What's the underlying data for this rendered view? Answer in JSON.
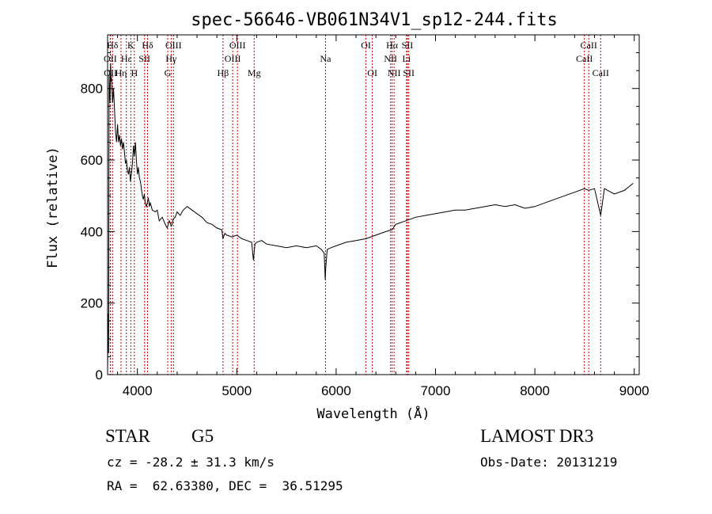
{
  "chart_data": {
    "type": "line",
    "title": "spec-56646-VB061N34V1_sp12-244.fits",
    "xlabel": "Wavelength (Å)",
    "ylabel": "Flux (relative)",
    "xlim": [
      3700,
      9050
    ],
    "ylim": [
      0,
      950
    ],
    "x_ticks": [
      4000,
      5000,
      6000,
      7000,
      8000,
      9000
    ],
    "y_ticks": [
      0,
      200,
      400,
      600,
      800
    ],
    "grid": false,
    "series": [
      {
        "x": [
          3700,
          3705,
          3710,
          3715,
          3720,
          3725,
          3730,
          3735,
          3740,
          3750,
          3760,
          3770,
          3780,
          3790,
          3800,
          3810,
          3820,
          3830,
          3840,
          3850,
          3860,
          3870,
          3880,
          3890,
          3900,
          3910,
          3920,
          3930,
          3940,
          3950,
          3960,
          3970,
          3980,
          3990,
          4000,
          4010,
          4020,
          4030,
          4040,
          4050,
          4060,
          4070,
          4080,
          4090,
          4100,
          4110,
          4120,
          4130,
          4150,
          4180,
          4200,
          4220,
          4250,
          4280,
          4300,
          4320,
          4330,
          4340,
          4350,
          4360,
          4380,
          4400,
          4430,
          4460,
          4500,
          4550,
          4600,
          4650,
          4700,
          4750,
          4800,
          4850,
          4861,
          4880,
          4900,
          4950,
          5000,
          5050,
          5100,
          5150,
          5167,
          5183,
          5200,
          5250,
          5300,
          5400,
          5500,
          5600,
          5700,
          5800,
          5850,
          5880,
          5890,
          5896,
          5910,
          5950,
          6000,
          6100,
          6200,
          6300,
          6400,
          6500,
          6563,
          6600,
          6700,
          6800,
          6900,
          7000,
          7100,
          7200,
          7300,
          7400,
          7500,
          7600,
          7700,
          7800,
          7900,
          8000,
          8100,
          8200,
          8300,
          8400,
          8498,
          8542,
          8600,
          8662,
          8700,
          8800,
          8900,
          8990
        ],
        "y": [
          5,
          170,
          60,
          840,
          800,
          760,
          870,
          820,
          830,
          760,
          800,
          740,
          680,
          650,
          700,
          650,
          670,
          640,
          660,
          630,
          650,
          620,
          590,
          600,
          570,
          560,
          580,
          540,
          560,
          590,
          640,
          610,
          650,
          600,
          560,
          580,
          550,
          540,
          520,
          500,
          490,
          505,
          480,
          470,
          480,
          495,
          470,
          480,
          460,
          455,
          460,
          430,
          440,
          420,
          410,
          430,
          425,
          415,
          420,
          435,
          440,
          455,
          445,
          460,
          470,
          460,
          450,
          440,
          425,
          420,
          410,
          405,
          380,
          395,
          390,
          385,
          390,
          380,
          375,
          370,
          320,
          365,
          370,
          375,
          365,
          360,
          355,
          360,
          355,
          360,
          350,
          340,
          265,
          300,
          350,
          355,
          360,
          370,
          375,
          380,
          390,
          400,
          405,
          420,
          430,
          440,
          445,
          450,
          455,
          460,
          460,
          465,
          470,
          475,
          470,
          475,
          465,
          470,
          480,
          490,
          500,
          510,
          520,
          515,
          520,
          445,
          520,
          505,
          515,
          535
        ]
      }
    ],
    "annotations": [
      {
        "label": "Hδ",
        "x": 3750,
        "row": 1,
        "color": "#cc0000"
      },
      {
        "label": "OII",
        "x": 3727,
        "row": 2,
        "color": "#cc0000"
      },
      {
        "label": "OII",
        "x": 3729,
        "row": 3,
        "color": "#cc0000"
      },
      {
        "label": "K",
        "x": 3934,
        "row": 1,
        "color": "#cc0000"
      },
      {
        "label": "Hε",
        "x": 3889,
        "row": 2,
        "color": "#cc0000"
      },
      {
        "label": "Hη",
        "x": 3835,
        "row": 3,
        "color": "#cc0000"
      },
      {
        "label": "Hδ",
        "x": 4102,
        "row": 1,
        "color": "#cc0000"
      },
      {
        "label": "SII",
        "x": 4072,
        "row": 2,
        "color": "#cc0000"
      },
      {
        "label": "H",
        "x": 3969,
        "row": 3,
        "color": "#cc0000"
      },
      {
        "label": "OIII",
        "x": 4363,
        "row": 1,
        "color": "#cc0000"
      },
      {
        "label": "Hγ",
        "x": 4340,
        "row": 2,
        "color": "#cc0000"
      },
      {
        "label": "G",
        "x": 4305,
        "row": 3,
        "color": "#cc0000"
      },
      {
        "label": "OIII",
        "x": 5007,
        "row": 1,
        "color": "#cc0000"
      },
      {
        "label": "OIII",
        "x": 4959,
        "row": 2,
        "color": "#cc0000"
      },
      {
        "label": "Hβ",
        "x": 4861,
        "row": 3,
        "color": "#cc0000"
      },
      {
        "label": "Mg",
        "x": 5175,
        "row": 3,
        "color": "#cc0000"
      },
      {
        "label": "Na",
        "x": 5893,
        "row": 2,
        "color": "#cc0000"
      },
      {
        "label": "OI",
        "x": 6300,
        "row": 1,
        "color": "#cc0000"
      },
      {
        "label": "OI",
        "x": 6364,
        "row": 3,
        "color": "#cc0000"
      },
      {
        "label": "Hα",
        "x": 6563,
        "row": 1,
        "color": "#cc0000"
      },
      {
        "label": "NII",
        "x": 6548,
        "row": 2,
        "color": "#cc0000"
      },
      {
        "label": "NII",
        "x": 6583,
        "row": 3,
        "color": "#cc0000"
      },
      {
        "label": "SII",
        "x": 6717,
        "row": 1,
        "color": "#cc0000"
      },
      {
        "label": "Li",
        "x": 6708,
        "row": 2,
        "color": "#cc0000"
      },
      {
        "label": "SII",
        "x": 6731,
        "row": 3,
        "color": "#cc0000"
      },
      {
        "label": "CaII",
        "x": 8542,
        "row": 1,
        "color": "#cc0000"
      },
      {
        "label": "CaII",
        "x": 8498,
        "row": 2,
        "color": "#cc0000"
      },
      {
        "label": "CaII",
        "x": 8662,
        "row": 3,
        "color": "#cc0000"
      }
    ]
  },
  "info": {
    "class": "STAR",
    "subclass": "G5",
    "survey": "LAMOST DR3",
    "cz": "cz = -28.2 ± 31.3 km/s",
    "obs_date": "Obs-Date: 20131219",
    "coords": "RA =  62.63380, DEC =  36.51295"
  },
  "colors": {
    "spectrum": "#000000",
    "lines": "#cc0000",
    "axes": "#000000"
  }
}
